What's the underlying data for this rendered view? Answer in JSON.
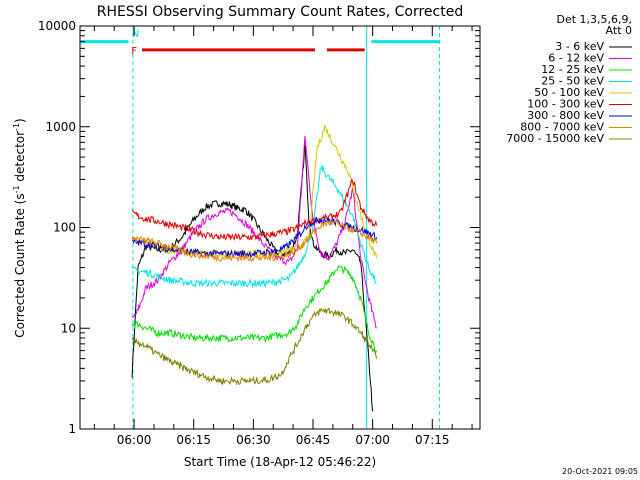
{
  "chart_data": {
    "type": "line",
    "title": "RHESSI Observing Summary Count Rates, Corrected",
    "xlabel": "Start Time (18-Apr-12 05:46:22)",
    "ylabel": "Corrected Count Rate (s",
    "ylabel_sup1": "-1",
    "ylabel_mid": " detector",
    "ylabel_sup2": "-1",
    "ylabel_end": ")",
    "yscale": "log",
    "ylim": [
      1,
      10000
    ],
    "y_ticks": [
      1,
      10,
      100,
      1000,
      10000
    ],
    "y_tick_labels": [
      "1",
      "10",
      "100",
      "1000",
      "10000"
    ],
    "xlim": [
      346.4,
      447.0
    ],
    "x_ticks": [
      360,
      375,
      390,
      405,
      420,
      435
    ],
    "x_tick_labels": [
      "06:00",
      "06:15",
      "06:30",
      "06:45",
      "07:00",
      "07:15"
    ],
    "legend_header": [
      "Det 1,3,5,6,9,",
      "Att 0"
    ],
    "legend_position": "top-right",
    "timestamp": "20-Oct-2021 09:05",
    "flags": [
      {
        "label": "N",
        "color": "#00e5e5",
        "x": 359.4,
        "y": 8500
      },
      {
        "label": "F",
        "color": "#e00000",
        "x": 359.3,
        "y": 5800
      }
    ],
    "bars": [
      {
        "color": "#00e5e5",
        "y": 7000,
        "segments": [
          [
            346.4,
            358.6
          ],
          [
            419.7,
            437.0
          ]
        ]
      },
      {
        "color": "#e00000",
        "y": 5800,
        "segments": [
          [
            362.0,
            405.5
          ],
          [
            408.5,
            418.0
          ]
        ]
      }
    ],
    "vlines": [
      {
        "color": "#00e5e5",
        "x": 346.4,
        "style": "solid"
      },
      {
        "color": "#00e5e5",
        "x": 359.7,
        "style": "dashed"
      },
      {
        "color": "#00e5e5",
        "x": 418.5,
        "style": "solid"
      },
      {
        "color": "#00e5e5",
        "x": 436.8,
        "style": "dashed"
      }
    ],
    "series": [
      {
        "name": "3 - 6 keV",
        "color": "#000000",
        "x": [
          359.5,
          361,
          363,
          366,
          369,
          372,
          375,
          378,
          381,
          384,
          386,
          388,
          390,
          393,
          396,
          399,
          401,
          403,
          404,
          405,
          407,
          409,
          411,
          413,
          415,
          417,
          419,
          420
        ],
        "y": [
          3.5,
          40,
          65,
          60,
          62,
          80,
          120,
          160,
          175,
          170,
          155,
          150,
          120,
          80,
          55,
          55,
          80,
          650,
          120,
          70,
          55,
          52,
          60,
          55,
          60,
          45,
          5,
          1.5
        ]
      },
      {
        "name": "6 - 12 keV",
        "color": "#e000e0",
        "x": [
          359.5,
          361,
          363,
          366,
          369,
          372,
          375,
          378,
          381,
          384,
          386,
          388,
          390,
          393,
          396,
          399,
          401,
          403,
          404,
          405,
          407,
          409,
          411,
          413,
          415,
          417,
          419,
          421
        ],
        "y": [
          12,
          15,
          25,
          30,
          45,
          60,
          90,
          120,
          140,
          145,
          130,
          110,
          90,
          65,
          50,
          45,
          60,
          800,
          300,
          120,
          55,
          50,
          70,
          110,
          240,
          50,
          20,
          10
        ]
      },
      {
        "name": "12 - 25 keV",
        "color": "#00e000",
        "x": [
          359.5,
          361,
          363,
          366,
          369,
          372,
          375,
          378,
          381,
          384,
          387,
          390,
          393,
          396,
          399,
          401,
          403,
          405,
          407,
          409,
          411,
          413,
          415,
          417,
          419,
          421
        ],
        "y": [
          11,
          11,
          10,
          9,
          9,
          8.5,
          8,
          8,
          8,
          8,
          8,
          8,
          8,
          8.5,
          9,
          11,
          16,
          20,
          25,
          30,
          40,
          38,
          32,
          20,
          9,
          6
        ]
      },
      {
        "name": "25 - 50 keV",
        "color": "#00e5e5",
        "x": [
          359.5,
          361,
          363,
          366,
          369,
          372,
          375,
          378,
          381,
          384,
          387,
          390,
          393,
          396,
          399,
          401,
          403,
          405,
          407,
          409,
          411,
          413,
          415,
          417,
          419,
          421
        ],
        "y": [
          38,
          37,
          36,
          33,
          30,
          29,
          28,
          28,
          28,
          28,
          28,
          28,
          28,
          29,
          31,
          40,
          55,
          100,
          400,
          310,
          250,
          180,
          130,
          70,
          40,
          28
        ]
      },
      {
        "name": "50 - 100 keV",
        "color": "#d8c800",
        "x": [
          359.5,
          362,
          365,
          368,
          372,
          376,
          380,
          384,
          388,
          392,
          396,
          399,
          402,
          404,
          406,
          408,
          410,
          412,
          414,
          416,
          418,
          420,
          421
        ],
        "y": [
          75,
          72,
          68,
          60,
          58,
          55,
          55,
          55,
          55,
          55,
          55,
          60,
          65,
          80,
          600,
          1000,
          700,
          500,
          350,
          180,
          100,
          60,
          50
        ]
      },
      {
        "name": "100 - 300 keV",
        "color": "#e00000",
        "x": [
          359.5,
          362,
          366,
          370,
          374,
          378,
          382,
          386,
          390,
          394,
          398,
          400,
          403,
          406,
          409,
          412,
          415,
          417,
          419,
          421
        ],
        "y": [
          140,
          125,
          115,
          105,
          95,
          85,
          80,
          80,
          80,
          85,
          90,
          95,
          110,
          120,
          125,
          140,
          300,
          160,
          120,
          105
        ]
      },
      {
        "name": "300 - 800 keV",
        "color": "#0000e0",
        "x": [
          359.5,
          362,
          366,
          370,
          374,
          378,
          382,
          386,
          390,
          394,
          398,
          401,
          404,
          407,
          409,
          411,
          413,
          415,
          417,
          419,
          421
        ],
        "y": [
          72,
          70,
          65,
          60,
          57,
          55,
          55,
          55,
          55,
          57,
          63,
          80,
          110,
          120,
          118,
          112,
          105,
          100,
          95,
          88,
          80
        ]
      },
      {
        "name": "800 - 7000 keV",
        "color": "#e88000",
        "x": [
          359.5,
          362,
          366,
          370,
          374,
          378,
          382,
          386,
          390,
          394,
          398,
          401,
          404,
          407,
          409,
          411,
          413,
          415,
          417,
          419,
          421
        ],
        "y": [
          78,
          75,
          70,
          62,
          55,
          52,
          50,
          50,
          50,
          50,
          52,
          60,
          80,
          105,
          112,
          110,
          100,
          95,
          88,
          80,
          70
        ]
      },
      {
        "name": "7000 - 15000 keV",
        "color": "#808000",
        "x": [
          359.5,
          362,
          366,
          370,
          374,
          378,
          382,
          386,
          390,
          394,
          397,
          399,
          401,
          403,
          405,
          407,
          409,
          411,
          413,
          415,
          417,
          419,
          421
        ],
        "y": [
          7.5,
          7,
          5.5,
          4.5,
          3.8,
          3.3,
          3.0,
          3.0,
          3.0,
          3.1,
          3.5,
          5,
          7,
          10,
          13,
          15,
          15,
          14,
          13,
          11,
          9,
          7,
          5
        ]
      }
    ]
  }
}
